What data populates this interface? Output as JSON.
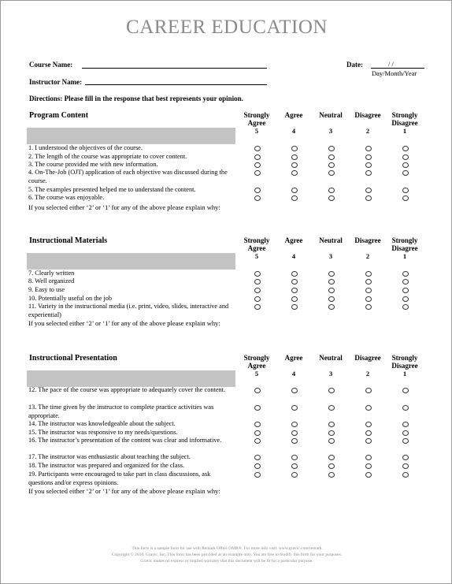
{
  "title": "CAREER EDUCATION",
  "course_name_label": "Course Name:",
  "instructor_name_label": "Instructor Name:",
  "date_label": "Date:",
  "date_separators": "/          /",
  "date_format": "Day/Month/Year",
  "directions": "Directions:  Please fill in the response that best represents your opinion.",
  "scale": [
    {
      "label": "Strongly Agree",
      "value": "5"
    },
    {
      "label": "Agree",
      "value": "4"
    },
    {
      "label": "Neutral",
      "value": "3"
    },
    {
      "label": "Disagree",
      "value": "2"
    },
    {
      "label": "Strongly Disagree",
      "value": "1"
    }
  ],
  "sections": [
    {
      "title": "Program Content",
      "questions": [
        "1.  I understood the objectives of the course.",
        "2.  The length of the course was appropriate to cover content.",
        "3.  The course provided me with new information.",
        "4.  On-The-Job (OJT) application of each objective was discussed during the course.",
        "5.  The examples presented helped me to understand the content.",
        "6.  The course was enjoyable."
      ],
      "explain": "If you selected either ‘2’ or ‘1’ for any of the above please explain why:"
    },
    {
      "title": "Instructional Materials",
      "questions": [
        "7.  Clearly written",
        "8.  Well organized",
        "9.  Easy to use",
        "10.  Potentially useful on the job",
        "11.  Variety in the instructional media (i.e. print, video, slides, interactive and experiential)"
      ],
      "explain": "If you selected either ‘2’ or ‘1’ for any of the above please explain why:"
    },
    {
      "title": "Instructional Presentation",
      "questions": [
        "12.  The pace of the course was appropriate to adequately cover the content.",
        "13.  The time given by the instructor to complete practice activities was appropriate.",
        "14.  The instructor was knowledgeable about the subject.",
        "15.  The instructor was responsive to my needs/questions.",
        "16.  The instructor’s presentation of the content was clear and informative.",
        "17.  The instructor was enthusiastic about teaching the subject.",
        "18.  The instructor was prepared and organized for the class.",
        "19.  Participants were encouraged to take part in class discussions, ask questions and/or express opinions."
      ],
      "explain": "If you selected either ‘2’ or ‘1’ for any of the above please explain why:"
    }
  ],
  "footer": [
    "This form is a sample form for use with Remark Office OMR®. For more info visit: www.gravic.com/remark",
    "Copyright © 2010, Gravic, Inc. This form has been provided as an example only. You are free to modify this form for your purposes.",
    "Gravic makes no express or implied warranty that this document will be fit for a particular purpose."
  ]
}
